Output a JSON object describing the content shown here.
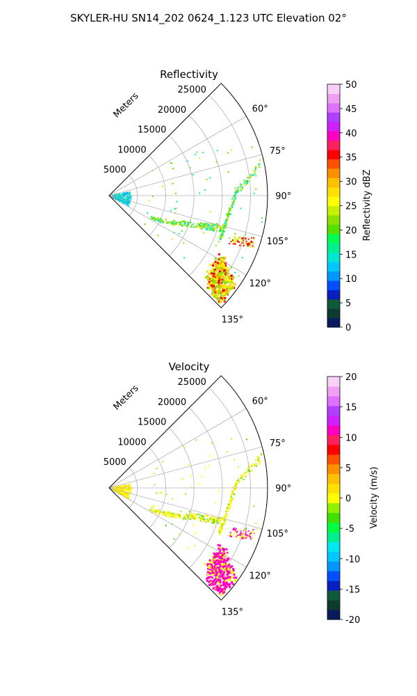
{
  "title": "SKYLER-HU  SN14_202  0624_1.123 UTC Elevation 02°",
  "panels": [
    {
      "name": "reflectivity",
      "title": "Reflectivity",
      "radial_label": "Meters",
      "colorbar_label": "Reflectivity dBZ",
      "colorbar_ticks": [
        "0",
        "5",
        "10",
        "15",
        "20",
        "25",
        "30",
        "35",
        "40",
        "45",
        "50"
      ]
    },
    {
      "name": "velocity",
      "title": "Velocity",
      "radial_label": "Meters",
      "colorbar_label": "Velocity (m/s)",
      "colorbar_ticks": [
        "-20",
        "-15",
        "-10",
        "-5",
        "0",
        "5",
        "10",
        "15",
        "20"
      ]
    }
  ],
  "chart_data": [
    {
      "type": "heatmap",
      "projection": "polar-sector",
      "title": "Reflectivity",
      "theta_range_deg": [
        45,
        135
      ],
      "theta_ticks": [
        "60°",
        "75°",
        "90°",
        "105°",
        "120°",
        "135°"
      ],
      "theta_values": [
        60,
        75,
        90,
        105,
        120,
        135
      ],
      "r_range": [
        0,
        28000
      ],
      "r_ticks": [
        "5000",
        "10000",
        "15000",
        "20000",
        "25000"
      ],
      "r_values": [
        5000,
        10000,
        15000,
        20000,
        25000
      ],
      "r_label": "Meters",
      "colorbar": {
        "label": "Reflectivity dBZ",
        "range": [
          0,
          50
        ]
      },
      "grid": true
    },
    {
      "type": "heatmap",
      "projection": "polar-sector",
      "title": "Velocity",
      "theta_range_deg": [
        45,
        135
      ],
      "theta_ticks": [
        "60°",
        "75°",
        "90°",
        "105°",
        "120°",
        "135°"
      ],
      "theta_values": [
        60,
        75,
        90,
        105,
        120,
        135
      ],
      "r_range": [
        0,
        28000
      ],
      "r_ticks": [
        "5000",
        "10000",
        "15000",
        "20000",
        "25000"
      ],
      "r_values": [
        5000,
        10000,
        15000,
        20000,
        25000
      ],
      "r_label": "Meters",
      "colorbar": {
        "label": "Velocity (m/s)",
        "range": [
          -20,
          20
        ]
      },
      "grid": true
    }
  ],
  "colors": {
    "refl_scale": [
      "#0a1a5e",
      "#0d3b2e",
      "#0f5a3a",
      "#0a1fbf",
      "#0050ff",
      "#0096ff",
      "#00c8ff",
      "#00e8d0",
      "#00f090",
      "#00ff50",
      "#55e000",
      "#8ce000",
      "#c8f000",
      "#ffff00",
      "#ffe000",
      "#ffc000",
      "#ff9000",
      "#ff5000",
      "#ff0000",
      "#ff2060",
      "#ff00c0",
      "#d020ff",
      "#b040ff",
      "#e070ff",
      "#f0a0f0",
      "#f8d0f8"
    ],
    "vel_scale": [
      "#0a1a5e",
      "#0d3b2e",
      "#0f5a3a",
      "#0a1fbf",
      "#0050ff",
      "#0096ff",
      "#00c8ff",
      "#00e8f0",
      "#00f090",
      "#00ff40",
      "#40e000",
      "#90f000",
      "#ffff00",
      "#ffe000",
      "#ffc000",
      "#ff9000",
      "#ff5000",
      "#ff0000",
      "#ff2060",
      "#ff00c0",
      "#d020ff",
      "#b040ff",
      "#e070ff",
      "#f0a0f0",
      "#f8d0f8"
    ]
  }
}
